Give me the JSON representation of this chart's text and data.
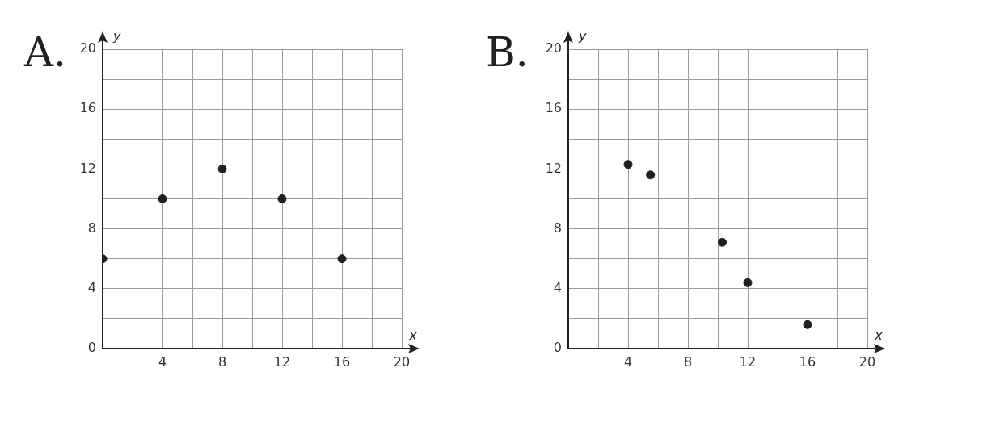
{
  "chart_data": [
    {
      "type": "scatter",
      "title": "A.",
      "xlabel": "x",
      "ylabel": "y",
      "x": [
        0,
        4,
        8,
        12,
        16
      ],
      "values": [
        6,
        10,
        12,
        10,
        6
      ],
      "color": "#231f20",
      "marker": "circle",
      "grid": true,
      "xlim": [
        0,
        20
      ],
      "ylim": [
        0,
        20
      ],
      "xticks": [
        {
          "value": 0,
          "label": null
        },
        {
          "value": 2,
          "label": null
        },
        4,
        {
          "value": 6,
          "label": null
        },
        8,
        {
          "value": 10,
          "label": null
        },
        12,
        {
          "value": 14,
          "label": null
        },
        16,
        {
          "value": 18,
          "label": null
        },
        20
      ],
      "yticks": [
        0,
        {
          "value": 2,
          "label": null
        },
        4,
        {
          "value": 6,
          "label": null
        },
        8,
        {
          "value": 10,
          "label": null
        },
        12,
        {
          "value": 14,
          "label": null
        },
        16,
        {
          "value": 18,
          "label": null
        },
        20
      ]
    },
    {
      "type": "scatter",
      "title": "B.",
      "xlabel": "x",
      "ylabel": "y",
      "x": [
        4,
        5.5,
        10.3,
        12,
        16
      ],
      "values": [
        12.3,
        11.6,
        7.1,
        4.4,
        1.6
      ],
      "color": "#231f20",
      "marker": "circle",
      "grid": true,
      "xlim": [
        0,
        20
      ],
      "ylim": [
        0,
        20
      ],
      "xticks": [
        {
          "value": 0,
          "label": null
        },
        {
          "value": 2,
          "label": null
        },
        4,
        {
          "value": 6,
          "label": null
        },
        8,
        {
          "value": 10,
          "label": null
        },
        12,
        {
          "value": 14,
          "label": null
        },
        16,
        {
          "value": 18,
          "label": null
        },
        20
      ],
      "yticks": [
        0,
        {
          "value": 2,
          "label": null
        },
        4,
        {
          "value": 6,
          "label": null
        },
        8,
        {
          "value": 10,
          "label": null
        },
        12,
        {
          "value": 14,
          "label": null
        },
        16,
        {
          "value": 18,
          "label": null
        },
        20
      ]
    }
  ]
}
